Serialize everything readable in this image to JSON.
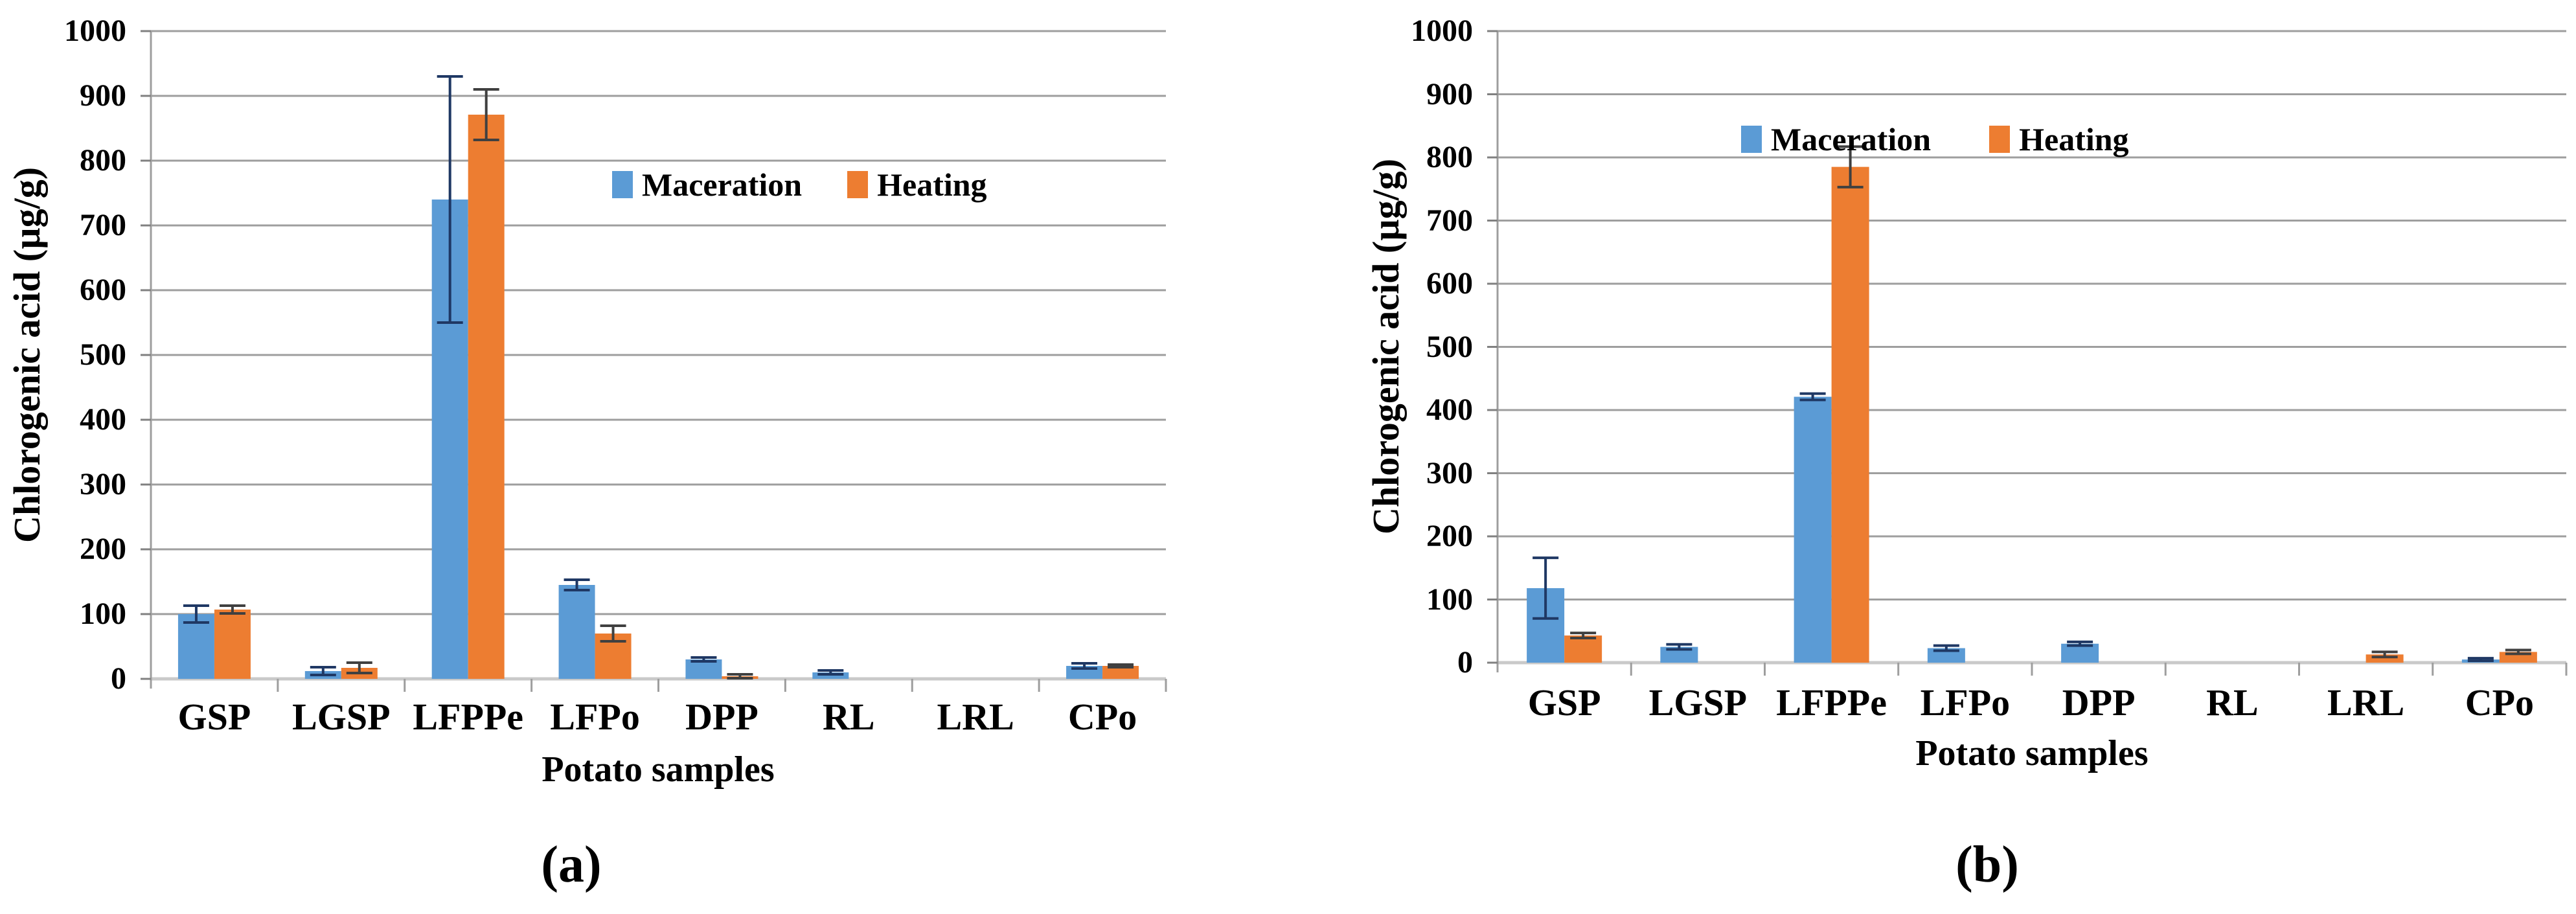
{
  "figure": {
    "captions": {
      "a": "(a)",
      "b": "(b)"
    }
  },
  "colors": {
    "maceration": "#5B9BD5",
    "heating": "#ED7D31",
    "maceration_error": "#1F3864",
    "heating_error": "#404040",
    "gridline": "#9E9E9E",
    "baseline": "#C9C9C9",
    "axis_line": "#9E9E9E",
    "tick": "#808080",
    "text": "#000000",
    "background": "#FFFFFF"
  },
  "chart_data": [
    {
      "type": "bar",
      "panel": "a",
      "xlabel": "Potato samples",
      "ylabel": "Chlorogenic acid (µg/g)",
      "ylim": [
        0,
        1000
      ],
      "ytick_step": 100,
      "grid": true,
      "legend_position": "inside-top",
      "error_bars": true,
      "categories": [
        "GSP",
        "LGSP",
        "LFPPe",
        "LFPo",
        "DPP",
        "RL",
        "LRL",
        "CPo"
      ],
      "series": [
        {
          "name": "Maceration",
          "values": [
            100,
            12,
            740,
            145,
            30,
            10,
            0,
            20
          ],
          "errors": [
            13,
            6,
            190,
            8,
            3,
            3,
            0,
            4
          ]
        },
        {
          "name": "Heating",
          "values": [
            107,
            17,
            871,
            70,
            4,
            0,
            0,
            20
          ],
          "errors": [
            6,
            8,
            39,
            12,
            3,
            0,
            0,
            2
          ]
        }
      ]
    },
    {
      "type": "bar",
      "panel": "b",
      "xlabel": "Potato samples",
      "ylabel": "Chlorogenic acid (µg/g)",
      "ylim": [
        0,
        1000
      ],
      "ytick_step": 100,
      "grid": true,
      "legend_position": "inside-top",
      "error_bars": true,
      "categories": [
        "GSP",
        "LGSP",
        "LFPPe",
        "LFPo",
        "DPP",
        "RL",
        "LRL",
        "CPo"
      ],
      "series": [
        {
          "name": "Maceration",
          "values": [
            118,
            25,
            421,
            23,
            30,
            0,
            0,
            5
          ],
          "errors": [
            48,
            4,
            5,
            4,
            3,
            0,
            0,
            2
          ]
        },
        {
          "name": "Heating",
          "values": [
            43,
            0,
            785,
            0,
            0,
            0,
            13,
            17
          ],
          "errors": [
            4,
            0,
            32,
            0,
            0,
            0,
            4,
            3
          ]
        }
      ]
    }
  ]
}
